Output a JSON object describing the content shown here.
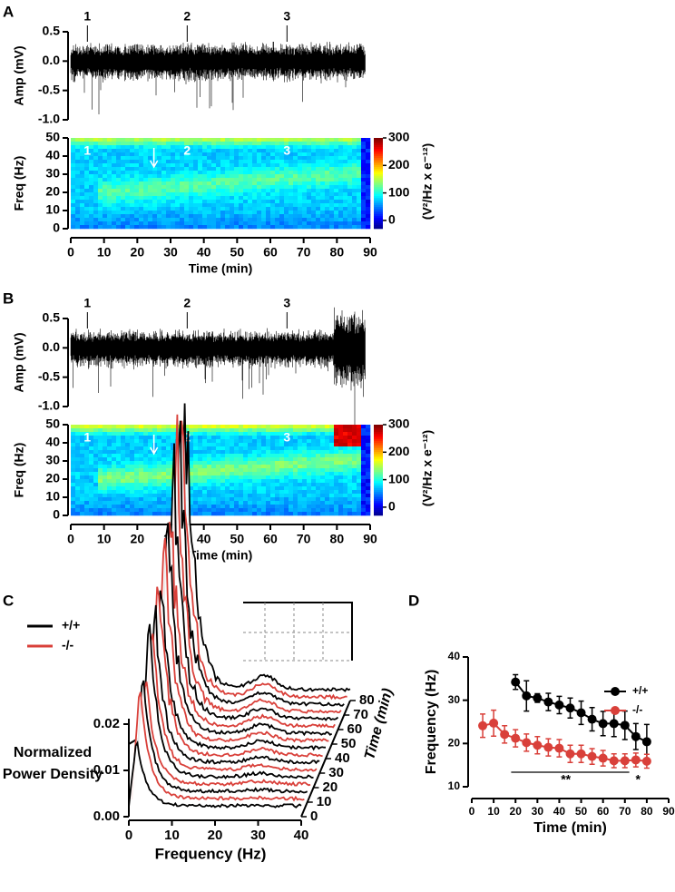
{
  "chart_data": [
    {
      "type": "trace",
      "panel_label": "A",
      "ylabel": "Amp (mV)",
      "ylim": [
        -1,
        0.5
      ],
      "yticks": [
        0.5,
        {
          "value": 0,
          "label": "0.0"
        },
        -0.5,
        {
          "value": -1,
          "label": "-1.0"
        }
      ],
      "xlim": [
        0,
        90
      ],
      "markers": [
        {
          "label": "1",
          "time": 5
        },
        {
          "label": "2",
          "time": 35
        },
        {
          "label": "3",
          "time": 65
        }
      ]
    },
    {
      "type": "spectrogram",
      "ylabel": "Freq (Hz)",
      "ylim": [
        0,
        50
      ],
      "yticks": [
        0,
        10,
        20,
        30,
        40,
        50
      ],
      "xlabel": "Time (min)",
      "xlim": [
        0,
        90
      ],
      "xticks": [
        0,
        10,
        20,
        30,
        40,
        50,
        60,
        70,
        80,
        90
      ],
      "colorbar_label": "(V²/Hz x e⁻¹²)",
      "clim": [
        -30,
        300
      ],
      "cticks": [
        0,
        100,
        200,
        300
      ],
      "markers": [
        {
          "label": "1",
          "time": 5
        },
        {
          "label": "2",
          "time": 35
        },
        {
          "label": "3",
          "time": 65
        }
      ],
      "arrow_time": 25
    },
    {
      "type": "trace",
      "panel_label": "B",
      "ylabel": "Amp (mV)",
      "ylim": [
        -1,
        0.5
      ],
      "yticks": [
        0.5,
        {
          "value": 0,
          "label": "0.0"
        },
        -0.5,
        {
          "value": -1,
          "label": "-1.0"
        }
      ],
      "xlim": [
        0,
        90
      ],
      "markers": [
        {
          "label": "1",
          "time": 5
        },
        {
          "label": "2",
          "time": 35
        },
        {
          "label": "3",
          "time": 65
        }
      ]
    },
    {
      "type": "spectrogram",
      "ylabel": "Freq (Hz)",
      "ylim": [
        0,
        50
      ],
      "yticks": [
        0,
        10,
        20,
        30,
        40,
        50
      ],
      "xlabel": "Time (min)",
      "xlim": [
        0,
        90
      ],
      "xticks": [
        0,
        10,
        20,
        30,
        40,
        50,
        60,
        70,
        80,
        90
      ],
      "colorbar_label": "(V²/Hz x e⁻¹²)",
      "clim": [
        -30,
        300
      ],
      "cticks": [
        0,
        100,
        200,
        300
      ],
      "markers": [
        {
          "label": "1",
          "time": 5
        },
        {
          "label": "2",
          "time": 35
        },
        {
          "label": "3",
          "time": 65
        }
      ],
      "arrow_time": 25
    },
    {
      "type": "waterfall",
      "panel_label": "C",
      "series": [
        {
          "name": "+/+",
          "color": "#000000"
        },
        {
          "name": "-/-",
          "color": "#d9403a"
        }
      ],
      "xlabel": "Frequency (Hz)",
      "xlim": [
        0,
        40
      ],
      "xticks": [
        0,
        10,
        20,
        30,
        40
      ],
      "ylabel_lines": [
        "Normalized",
        "Power Density"
      ],
      "ylim": [
        0,
        0.02
      ],
      "yticks": [
        {
          "value": 0,
          "label": "0.00"
        },
        0.01,
        0.02
      ],
      "zlabel": "Time (min)",
      "zlim": [
        0,
        80
      ],
      "zticks": [
        0,
        10,
        20,
        30,
        40,
        50,
        60,
        70,
        80
      ]
    },
    {
      "type": "line",
      "panel_label": "D",
      "xlabel": "Time (min)",
      "ylabel": "Frequency (Hz)",
      "xlim": [
        0,
        90
      ],
      "xticks": [
        0,
        10,
        20,
        30,
        40,
        50,
        60,
        70,
        80,
        90
      ],
      "ylim": [
        10,
        40
      ],
      "yticks": [
        10,
        20,
        30,
        40
      ],
      "series": [
        {
          "name": "+/+",
          "color": "#000000",
          "x": [
            20,
            25,
            30,
            35,
            40,
            45,
            50,
            55,
            60,
            65,
            70,
            75,
            80
          ],
          "values": [
            34.2,
            31,
            30.5,
            29.6,
            28.9,
            28.2,
            27.1,
            25.6,
            24.6,
            24.6,
            24.2,
            21.6,
            20.4
          ],
          "errors": [
            1.7,
            3.5,
            1,
            2,
            2,
            2.3,
            2.7,
            2.7,
            2.8,
            3,
            3.3,
            3,
            4
          ]
        },
        {
          "name": "-/-",
          "color": "#d9403a",
          "x": [
            5,
            10,
            15,
            20,
            25,
            30,
            35,
            40,
            45,
            50,
            55,
            60,
            65,
            70,
            75,
            80
          ],
          "values": [
            24.1,
            24.7,
            22.1,
            21.2,
            20.2,
            19.6,
            19.1,
            18.9,
            17.6,
            17.6,
            17,
            16.6,
            16,
            16,
            16.2,
            15.9
          ],
          "errors": [
            2.7,
            3,
            2,
            2,
            2,
            2,
            2,
            2,
            2,
            2,
            1.8,
            1.8,
            1.6,
            1.6,
            1.6,
            1.6
          ]
        }
      ],
      "annotations": [
        "**",
        "*"
      ]
    }
  ]
}
